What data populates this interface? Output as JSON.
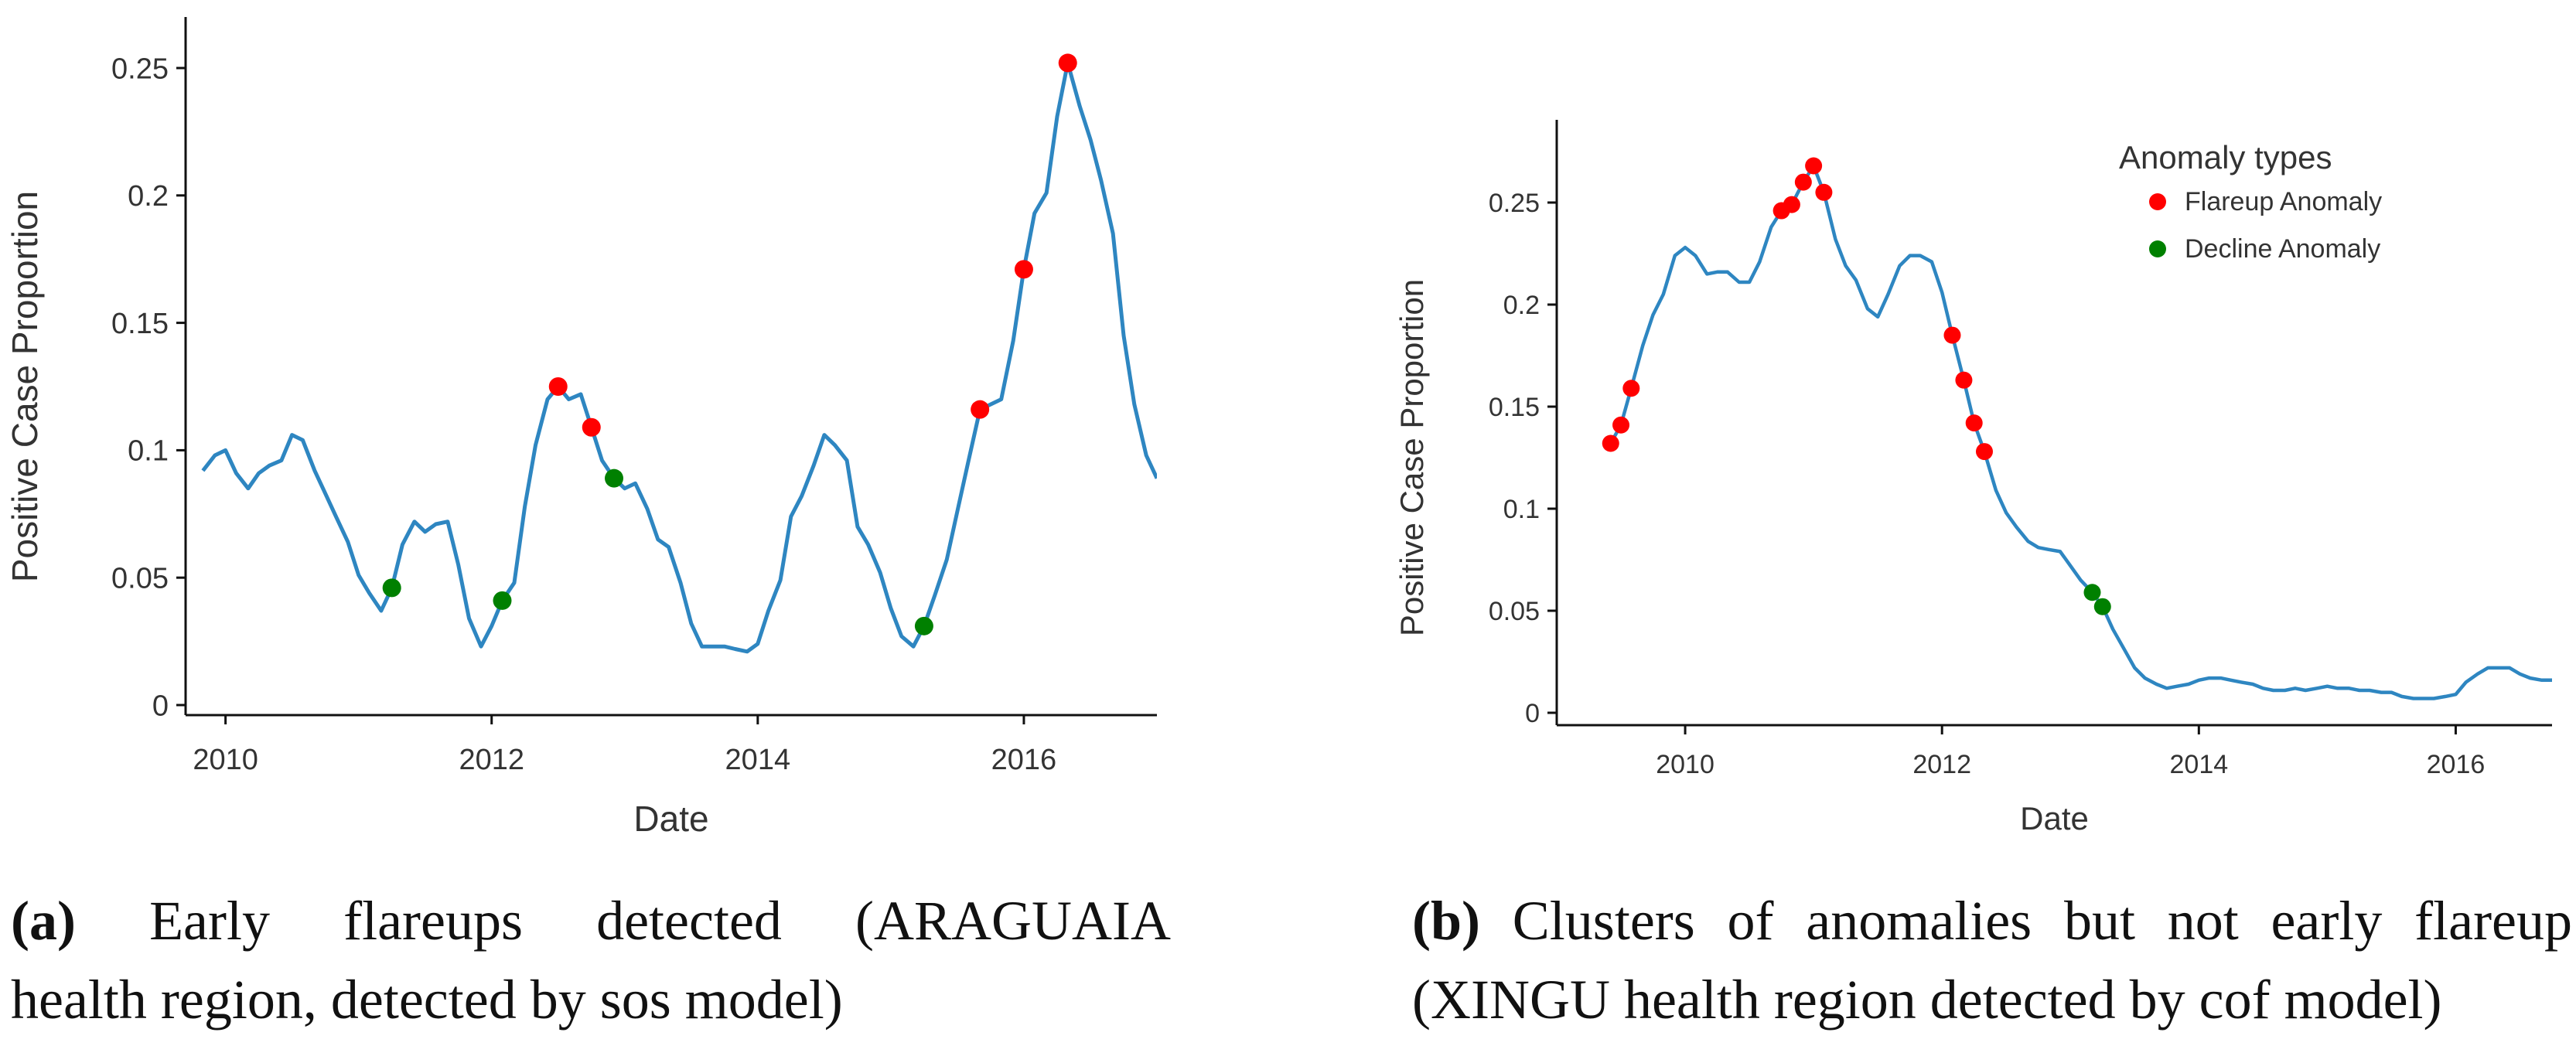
{
  "colors": {
    "line": "#2e86c1",
    "flareup": "#ff0000",
    "decline": "#008000",
    "axis": "#111111",
    "text": "#333333"
  },
  "chart_data": [
    {
      "type": "line",
      "title": "",
      "xlabel": "Date",
      "ylabel": "Positive Case Proportion",
      "xlim": [
        2009.7,
        2017.0
      ],
      "ylim": [
        0,
        0.25
      ],
      "x_ticks": [
        2010,
        2012,
        2014,
        2016
      ],
      "x_tick_labels": [
        "2010",
        "2012",
        "2014",
        "2016"
      ],
      "y_ticks": [
        0,
        0.05,
        0.1,
        0.15,
        0.2,
        0.25
      ],
      "y_tick_labels": [
        "0",
        "0.05",
        "0.1",
        "0.15",
        "0.2",
        "0.25"
      ],
      "grid": false,
      "series": [
        {
          "x": [
            2009.83,
            2009.92,
            2010.0,
            2010.08,
            2010.17,
            2010.25,
            2010.33,
            2010.42,
            2010.5,
            2010.58,
            2010.67,
            2010.75,
            2010.83,
            2010.92,
            2011.0,
            2011.08,
            2011.17,
            2011.25,
            2011.33,
            2011.42,
            2011.5,
            2011.58,
            2011.67,
            2011.75,
            2011.83,
            2011.92,
            2012.0,
            2012.08,
            2012.17,
            2012.25,
            2012.33,
            2012.42,
            2012.5,
            2012.58,
            2012.67,
            2012.75,
            2012.83,
            2012.92,
            2013.0,
            2013.08,
            2013.17,
            2013.25,
            2013.33,
            2013.42,
            2013.5,
            2013.58,
            2013.67,
            2013.75,
            2013.83,
            2013.92,
            2014.0,
            2014.08,
            2014.17,
            2014.25,
            2014.33,
            2014.42,
            2014.5,
            2014.58,
            2014.67,
            2014.75,
            2014.83,
            2014.92,
            2015.0,
            2015.08,
            2015.17,
            2015.25,
            2015.33,
            2015.42,
            2015.5,
            2015.58,
            2015.67,
            2015.75,
            2015.83,
            2015.92,
            2016.0,
            2016.08,
            2016.17,
            2016.25,
            2016.33,
            2016.42,
            2016.5,
            2016.58,
            2016.67,
            2016.75,
            2016.83,
            2016.92,
            2017.0
          ],
          "y": [
            0.092,
            0.098,
            0.1,
            0.091,
            0.085,
            0.091,
            0.094,
            0.096,
            0.106,
            0.104,
            0.092,
            0.083,
            0.074,
            0.064,
            0.051,
            0.044,
            0.037,
            0.046,
            0.063,
            0.072,
            0.068,
            0.071,
            0.072,
            0.055,
            0.034,
            0.023,
            0.031,
            0.041,
            0.048,
            0.078,
            0.102,
            0.12,
            0.125,
            0.12,
            0.122,
            0.109,
            0.096,
            0.089,
            0.085,
            0.087,
            0.077,
            0.065,
            0.062,
            0.048,
            0.032,
            0.023,
            0.023,
            0.023,
            0.022,
            0.021,
            0.024,
            0.037,
            0.049,
            0.074,
            0.082,
            0.094,
            0.106,
            0.102,
            0.096,
            0.07,
            0.063,
            0.052,
            0.038,
            0.027,
            0.023,
            0.031,
            0.043,
            0.057,
            0.076,
            0.095,
            0.116,
            0.118,
            0.12,
            0.143,
            0.171,
            0.193,
            0.201,
            0.231,
            0.252,
            0.235,
            0.222,
            0.206,
            0.185,
            0.145,
            0.118,
            0.098,
            0.089
          ]
        }
      ],
      "anomalies": [
        {
          "type": "Flareup Anomaly",
          "x": 2012.5,
          "y": 0.125
        },
        {
          "type": "Flareup Anomaly",
          "x": 2012.75,
          "y": 0.109
        },
        {
          "type": "Flareup Anomaly",
          "x": 2015.67,
          "y": 0.116
        },
        {
          "type": "Flareup Anomaly",
          "x": 2016.0,
          "y": 0.171
        },
        {
          "type": "Flareup Anomaly",
          "x": 2016.33,
          "y": 0.252
        },
        {
          "type": "Decline Anomaly",
          "x": 2011.25,
          "y": 0.046
        },
        {
          "type": "Decline Anomaly",
          "x": 2012.08,
          "y": 0.041
        },
        {
          "type": "Decline Anomaly",
          "x": 2012.92,
          "y": 0.089
        },
        {
          "type": "Decline Anomaly",
          "x": 2015.25,
          "y": 0.031
        }
      ]
    },
    {
      "type": "line",
      "title": "",
      "xlabel": "Date",
      "ylabel": "Positive Case Proportion",
      "xlim": [
        2009.0,
        2016.75
      ],
      "ylim": [
        0,
        0.25
      ],
      "x_ticks": [
        2010,
        2012,
        2014,
        2016
      ],
      "x_tick_labels": [
        "2010",
        "2012",
        "2014",
        "2016"
      ],
      "y_ticks": [
        0,
        0.05,
        0.1,
        0.15,
        0.2,
        0.25
      ],
      "y_tick_labels": [
        "0",
        "0.05",
        "0.1",
        "0.15",
        "0.2",
        "0.25"
      ],
      "grid": false,
      "legend": {
        "title": "Anomaly types",
        "position": "top-right",
        "entries": [
          "Flareup Anomaly",
          "Decline Anomaly"
        ]
      },
      "series": [
        {
          "x": [
            2009.42,
            2009.5,
            2009.58,
            2009.67,
            2009.75,
            2009.83,
            2009.92,
            2010.0,
            2010.08,
            2010.17,
            2010.25,
            2010.33,
            2010.42,
            2010.5,
            2010.58,
            2010.67,
            2010.75,
            2010.83,
            2010.92,
            2011.0,
            2011.08,
            2011.17,
            2011.25,
            2011.33,
            2011.42,
            2011.5,
            2011.58,
            2011.67,
            2011.75,
            2011.83,
            2011.92,
            2012.0,
            2012.08,
            2012.17,
            2012.25,
            2012.33,
            2012.42,
            2012.5,
            2012.58,
            2012.67,
            2012.75,
            2012.83,
            2012.92,
            2013.0,
            2013.08,
            2013.17,
            2013.25,
            2013.33,
            2013.42,
            2013.5,
            2013.58,
            2013.67,
            2013.75,
            2013.83,
            2013.92,
            2014.0,
            2014.08,
            2014.17,
            2014.25,
            2014.33,
            2014.42,
            2014.5,
            2014.58,
            2014.67,
            2014.75,
            2014.83,
            2014.92,
            2015.0,
            2015.08,
            2015.17,
            2015.25,
            2015.33,
            2015.42,
            2015.5,
            2015.58,
            2015.67,
            2015.75,
            2015.83,
            2015.92,
            2016.0,
            2016.08,
            2016.17,
            2016.25,
            2016.33,
            2016.42,
            2016.5,
            2016.58,
            2016.67,
            2016.75
          ],
          "y": [
            0.132,
            0.141,
            0.159,
            0.18,
            0.195,
            0.205,
            0.224,
            0.228,
            0.224,
            0.215,
            0.216,
            0.216,
            0.211,
            0.211,
            0.221,
            0.238,
            0.246,
            0.249,
            0.26,
            0.268,
            0.255,
            0.232,
            0.219,
            0.212,
            0.198,
            0.194,
            0.205,
            0.219,
            0.224,
            0.224,
            0.221,
            0.206,
            0.185,
            0.163,
            0.142,
            0.128,
            0.109,
            0.098,
            0.091,
            0.084,
            0.081,
            0.08,
            0.079,
            0.072,
            0.065,
            0.059,
            0.052,
            0.041,
            0.031,
            0.022,
            0.017,
            0.014,
            0.012,
            0.013,
            0.014,
            0.016,
            0.017,
            0.017,
            0.016,
            0.015,
            0.014,
            0.012,
            0.011,
            0.011,
            0.012,
            0.011,
            0.012,
            0.013,
            0.012,
            0.012,
            0.011,
            0.011,
            0.01,
            0.01,
            0.008,
            0.007,
            0.007,
            0.007,
            0.008,
            0.009,
            0.015,
            0.019,
            0.022,
            0.022,
            0.022,
            0.019,
            0.017,
            0.016,
            0.016
          ]
        }
      ],
      "anomalies": [
        {
          "type": "Flareup Anomaly",
          "x": 2009.42,
          "y": 0.132
        },
        {
          "type": "Flareup Anomaly",
          "x": 2009.5,
          "y": 0.141
        },
        {
          "type": "Flareup Anomaly",
          "x": 2009.58,
          "y": 0.159
        },
        {
          "type": "Flareup Anomaly",
          "x": 2010.75,
          "y": 0.246
        },
        {
          "type": "Flareup Anomaly",
          "x": 2010.83,
          "y": 0.249
        },
        {
          "type": "Flareup Anomaly",
          "x": 2010.92,
          "y": 0.26
        },
        {
          "type": "Flareup Anomaly",
          "x": 2011.0,
          "y": 0.268
        },
        {
          "type": "Flareup Anomaly",
          "x": 2011.08,
          "y": 0.255
        },
        {
          "type": "Flareup Anomaly",
          "x": 2012.08,
          "y": 0.185
        },
        {
          "type": "Flareup Anomaly",
          "x": 2012.17,
          "y": 0.163
        },
        {
          "type": "Flareup Anomaly",
          "x": 2012.25,
          "y": 0.142
        },
        {
          "type": "Flareup Anomaly",
          "x": 2012.33,
          "y": 0.128
        },
        {
          "type": "Decline Anomaly",
          "x": 2013.17,
          "y": 0.059
        },
        {
          "type": "Decline Anomaly",
          "x": 2013.25,
          "y": 0.052
        }
      ]
    }
  ],
  "captions": {
    "a": {
      "label": "(a)",
      "line1": "Early flareups detected (ARAGUAIA",
      "line2": "health region, detected by sos model)"
    },
    "b": {
      "label": "(b)",
      "line1": "Clusters of anomalies but not early flareup",
      "line2": "(XINGU health region detected by cof model)"
    }
  }
}
